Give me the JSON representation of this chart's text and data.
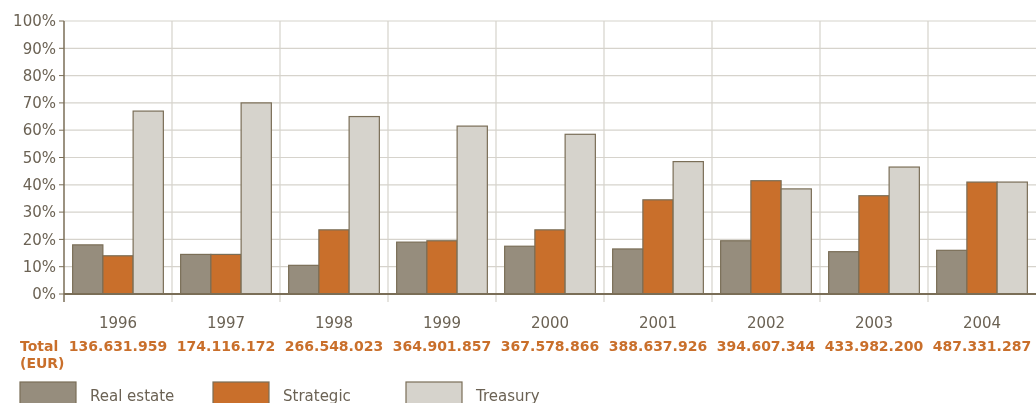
{
  "chart_data": {
    "type": "bar",
    "categories": [
      "1996",
      "1997",
      "1998",
      "1999",
      "2000",
      "2001",
      "2002",
      "2003",
      "2004"
    ],
    "series": [
      {
        "name": "Real estate",
        "color": "#968d7d",
        "values": [
          18,
          14.5,
          10.5,
          19,
          17.5,
          16.5,
          19.5,
          15.5,
          16
        ]
      },
      {
        "name": "Strategic",
        "color": "#c96f2b",
        "values": [
          14,
          14.5,
          23.5,
          19.5,
          23.5,
          34.5,
          41.5,
          36,
          41
        ]
      },
      {
        "name": "Treasury",
        "color": "#d6d3cc",
        "values": [
          67,
          70,
          65,
          61.5,
          58.5,
          48.5,
          38.5,
          46.5,
          41
        ]
      }
    ],
    "ylim": [
      0,
      100
    ],
    "yticks": [
      {
        "value": 0,
        "label": "0%"
      },
      {
        "value": 10,
        "label": "10%"
      },
      {
        "value": 20,
        "label": "20%"
      },
      {
        "value": 30,
        "label": "30%"
      },
      {
        "value": 40,
        "label": "40%"
      },
      {
        "value": 50,
        "label": "50%"
      },
      {
        "value": 60,
        "label": "60%"
      },
      {
        "value": 70,
        "label": "70%"
      },
      {
        "value": 80,
        "label": "80%"
      },
      {
        "value": 90,
        "label": "90%"
      },
      {
        "value": 100,
        "label": "100%"
      }
    ],
    "grid": true,
    "legend": "bottom",
    "annotations": [
      "Total (EUR)",
      "136.631.959",
      "174.116.172",
      "266.548.023",
      "364.901.857",
      "367.578.866",
      "388.637.926",
      "394.607.344",
      "433.982.200",
      "487.331.287"
    ]
  }
}
